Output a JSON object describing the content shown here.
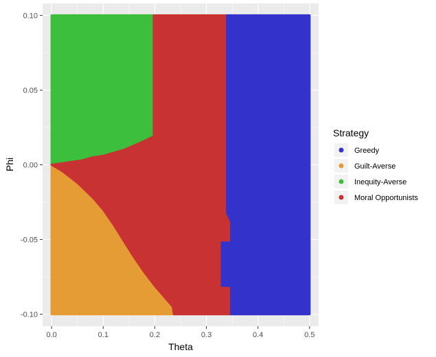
{
  "chart_data": {
    "type": "heatmap",
    "title": "",
    "xlabel": "Theta",
    "ylabel": "Phi",
    "xlim": [
      -0.0175,
      0.5175
    ],
    "ylim": [
      -0.108,
      0.108
    ],
    "x_ticks": [
      0.0,
      0.1,
      0.2,
      0.3,
      0.4,
      0.5
    ],
    "x_tick_labels": [
      "0.0",
      "0.1",
      "0.2",
      "0.3",
      "0.4",
      "0.5"
    ],
    "y_ticks": [
      -0.1,
      -0.05,
      0.0,
      0.05,
      0.1
    ],
    "y_tick_labels": [
      "-0.10",
      "-0.05",
      "0.00",
      "0.05",
      "0.10"
    ],
    "grid": true,
    "legend": {
      "title": "Strategy",
      "placement": "right",
      "entries": [
        {
          "name": "Greedy",
          "color": "#3333cc"
        },
        {
          "name": "Guilt-Averse",
          "color": "#e69c35"
        },
        {
          "name": "Inequity-Averse",
          "color": "#3cbf3c"
        },
        {
          "name": "Moral Opportunists",
          "color": "#c83232"
        }
      ]
    },
    "regions": [
      {
        "name": "Inequity-Averse",
        "color": "#3cbf3c",
        "polygon": [
          [
            0.0,
            0.0
          ],
          [
            0.0,
            0.1
          ],
          [
            0.198,
            0.1
          ],
          [
            0.198,
            0.019
          ],
          [
            0.18,
            0.016
          ],
          [
            0.16,
            0.013
          ],
          [
            0.14,
            0.01
          ],
          [
            0.12,
            0.008
          ],
          [
            0.1,
            0.006
          ],
          [
            0.08,
            0.005
          ],
          [
            0.06,
            0.003
          ],
          [
            0.04,
            0.002
          ],
          [
            0.02,
            0.001
          ]
        ]
      },
      {
        "name": "Guilt-Averse",
        "color": "#e69c35",
        "polygon": [
          [
            0.0,
            0.0
          ],
          [
            0.02,
            -0.004
          ],
          [
            0.05,
            -0.012
          ],
          [
            0.08,
            -0.022
          ],
          [
            0.1,
            -0.03
          ],
          [
            0.12,
            -0.04
          ],
          [
            0.14,
            -0.051
          ],
          [
            0.16,
            -0.062
          ],
          [
            0.18,
            -0.072
          ],
          [
            0.2,
            -0.081
          ],
          [
            0.22,
            -0.089
          ],
          [
            0.235,
            -0.095
          ],
          [
            0.237,
            -0.1
          ],
          [
            0.0,
            -0.1
          ]
        ]
      },
      {
        "name": "Moral Opportunists",
        "color": "#c83232",
        "polygon": [
          [
            0.198,
            0.1
          ],
          [
            0.34,
            0.1
          ],
          [
            0.34,
            -0.032
          ],
          [
            0.348,
            -0.038
          ],
          [
            0.348,
            -0.052
          ],
          [
            0.33,
            -0.052
          ],
          [
            0.33,
            -0.081
          ],
          [
            0.348,
            -0.081
          ],
          [
            0.348,
            -0.1
          ],
          [
            0.237,
            -0.1
          ],
          [
            0.235,
            -0.095
          ],
          [
            0.22,
            -0.089
          ],
          [
            0.2,
            -0.081
          ],
          [
            0.18,
            -0.072
          ],
          [
            0.16,
            -0.062
          ],
          [
            0.14,
            -0.051
          ],
          [
            0.12,
            -0.04
          ],
          [
            0.1,
            -0.03
          ],
          [
            0.08,
            -0.022
          ],
          [
            0.05,
            -0.012
          ],
          [
            0.02,
            -0.004
          ],
          [
            0.0,
            0.0
          ],
          [
            0.02,
            0.001
          ],
          [
            0.04,
            0.002
          ],
          [
            0.06,
            0.003
          ],
          [
            0.08,
            0.005
          ],
          [
            0.1,
            0.006
          ],
          [
            0.12,
            0.008
          ],
          [
            0.14,
            0.01
          ],
          [
            0.16,
            0.013
          ],
          [
            0.18,
            0.016
          ],
          [
            0.198,
            0.019
          ]
        ]
      },
      {
        "name": "Greedy",
        "color": "#3333cc",
        "polygon": [
          [
            0.34,
            0.1
          ],
          [
            0.5,
            0.1
          ],
          [
            0.5,
            -0.1
          ],
          [
            0.348,
            -0.1
          ],
          [
            0.348,
            -0.081
          ],
          [
            0.33,
            -0.081
          ],
          [
            0.33,
            -0.052
          ],
          [
            0.348,
            -0.052
          ],
          [
            0.348,
            -0.038
          ],
          [
            0.34,
            -0.032
          ]
        ]
      }
    ]
  }
}
